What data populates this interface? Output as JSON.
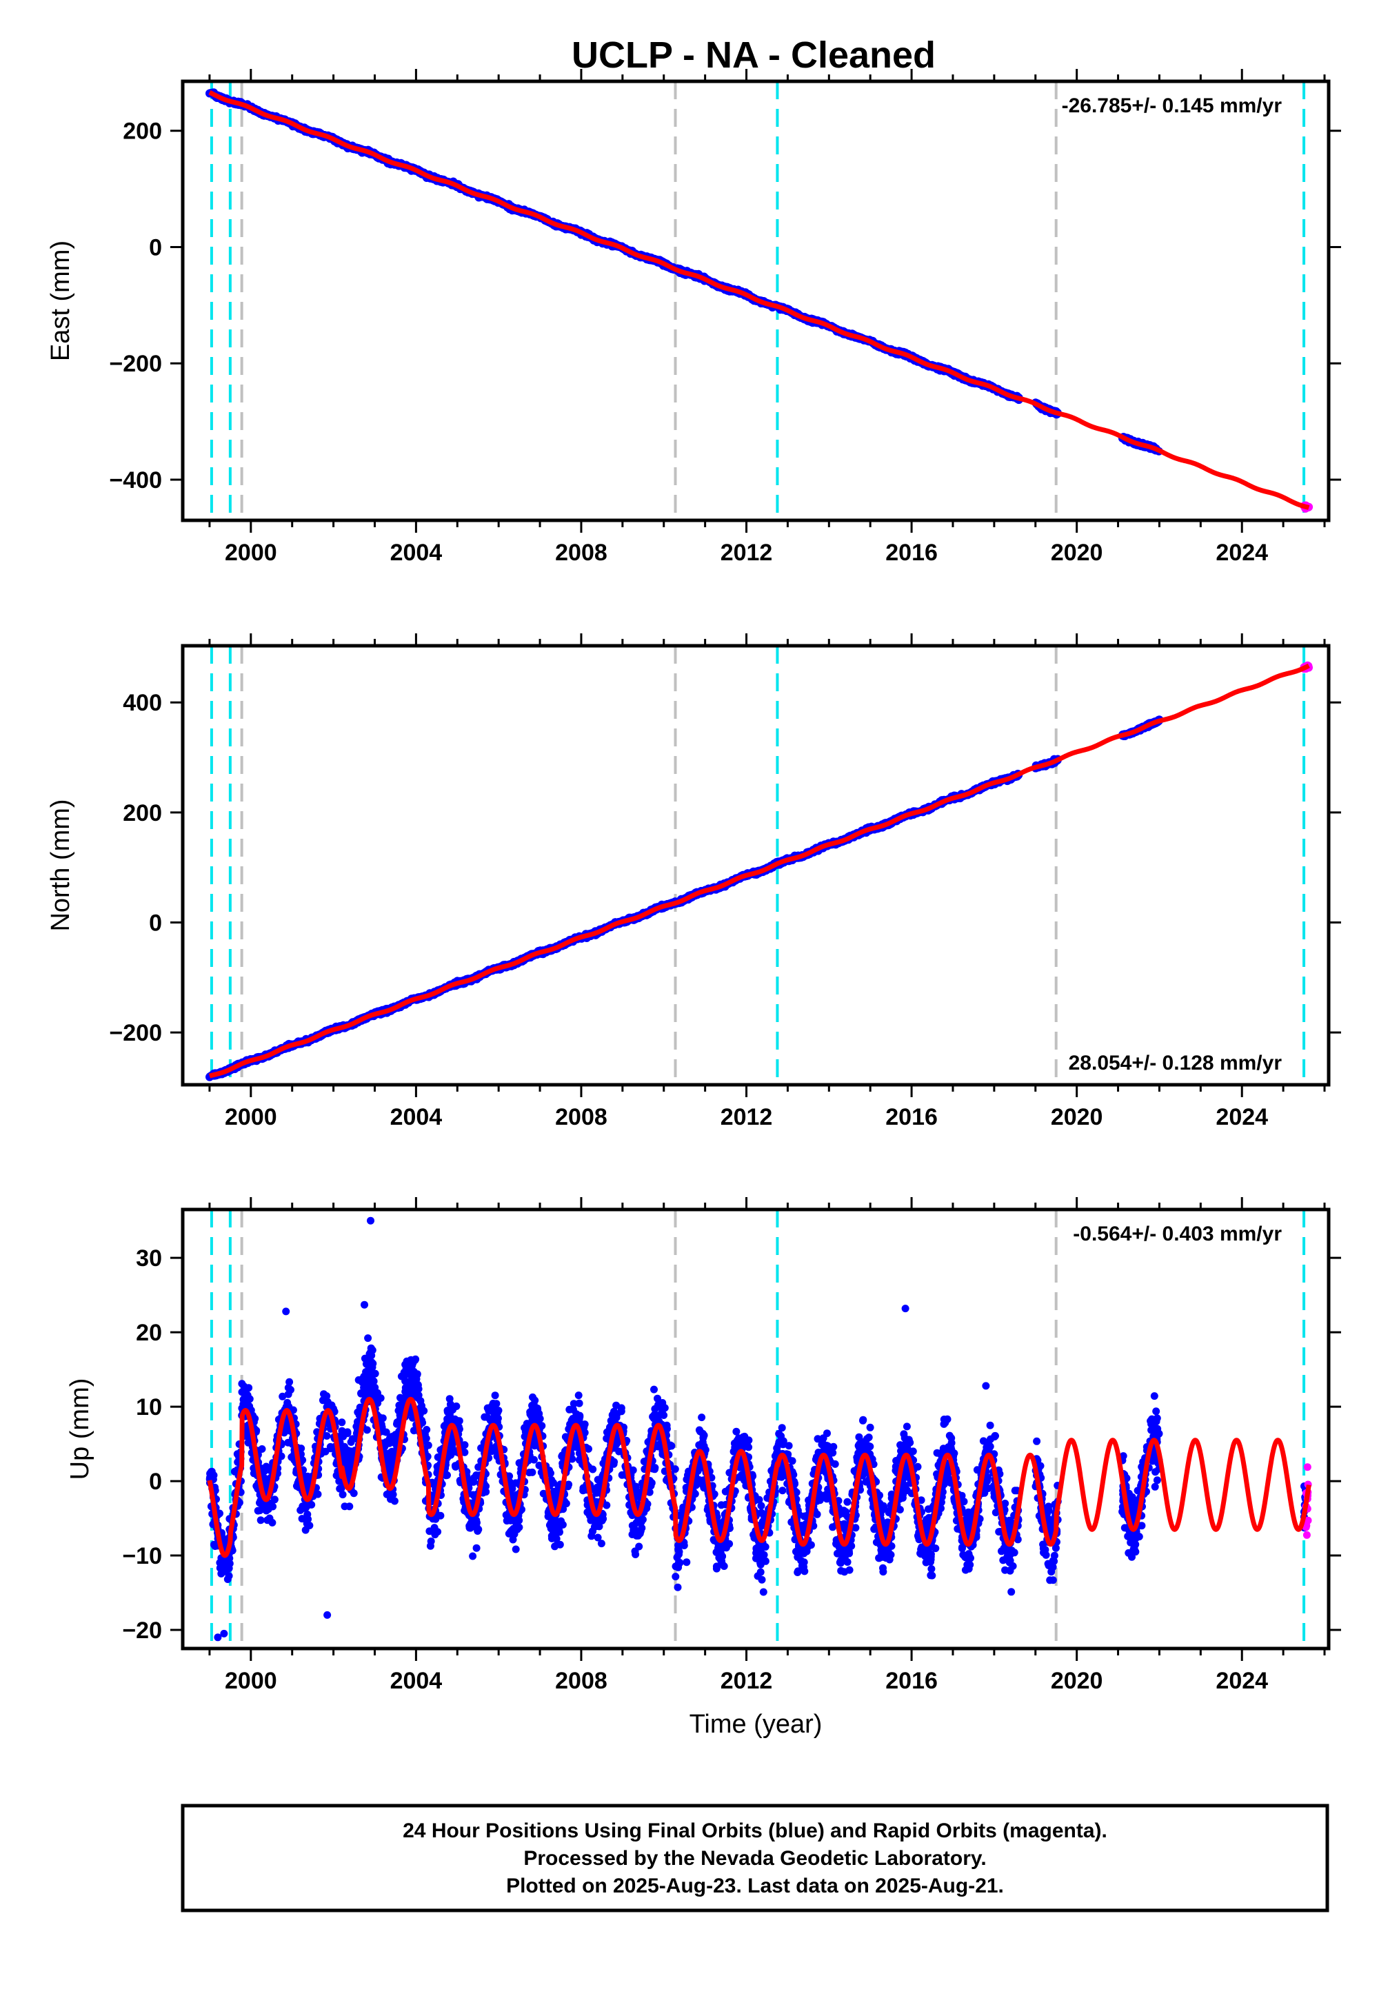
{
  "title": "UCLP  - NA - Cleaned",
  "colors": {
    "final_orbits": "#0000ff",
    "rapid_orbits": "#ff00ff",
    "model": "#ff0000",
    "equipment_change": "#00e5ee",
    "other_event": "#c0c0c0"
  },
  "footer": {
    "line1": "24 Hour Positions Using Final Orbits (blue) and Rapid Orbits (magenta).",
    "line2": "Processed by the Nevada Geodetic Laboratory.",
    "line3": "Plotted on 2025-Aug-23. Last data on 2025-Aug-21."
  },
  "chart_data": [
    {
      "type": "scatter",
      "panel": "east",
      "ylabel": "East (mm)",
      "xlabel": "",
      "xlim": [
        1998.35,
        2026.1
      ],
      "ylim": [
        -470,
        285
      ],
      "x_ticks": [
        2000,
        2004,
        2008,
        2012,
        2016,
        2020,
        2024
      ],
      "y_ticks": [
        200,
        0,
        -200,
        -400
      ],
      "rate_label": "-26.785+/- 0.145 mm/yr",
      "rate_position": "top-right",
      "trend": {
        "t0": 1999.0,
        "y0": 265,
        "rate": -26.785
      },
      "seasonal_amplitude": 1.5,
      "noise": 3,
      "series": [
        {
          "name": "Final Orbits",
          "color": "#0000ff",
          "segments": [
            [
              1999.0,
              2018.6
            ],
            [
              2019.0,
              2019.55
            ],
            [
              2021.1,
              2022.0
            ]
          ]
        },
        {
          "name": "Rapid Orbits",
          "color": "#ff00ff",
          "segments": [
            [
              2025.5,
              2025.62
            ]
          ]
        }
      ],
      "model_end": 2025.62,
      "event_lines": [
        {
          "x": 1999.05,
          "kind": "equipment_change"
        },
        {
          "x": 1999.5,
          "kind": "equipment_change"
        },
        {
          "x": 1999.78,
          "kind": "other_event"
        },
        {
          "x": 2010.28,
          "kind": "other_event"
        },
        {
          "x": 2012.75,
          "kind": "equipment_change"
        },
        {
          "x": 2019.5,
          "kind": "other_event"
        },
        {
          "x": 2025.5,
          "kind": "equipment_change"
        }
      ]
    },
    {
      "type": "scatter",
      "panel": "north",
      "ylabel": "North (mm)",
      "xlabel": "",
      "xlim": [
        1998.35,
        2026.1
      ],
      "ylim": [
        -295,
        503
      ],
      "x_ticks": [
        2000,
        2004,
        2008,
        2012,
        2016,
        2020,
        2024
      ],
      "y_ticks": [
        400,
        200,
        0,
        -200
      ],
      "rate_label": "28.054+/- 0.128 mm/yr",
      "rate_position": "bottom-right",
      "trend": {
        "t0": 1999.0,
        "y0": -280,
        "rate": 28.054
      },
      "seasonal_amplitude": 1.5,
      "noise": 3,
      "series": [
        {
          "name": "Final Orbits",
          "color": "#0000ff",
          "segments": [
            [
              1999.0,
              2018.6
            ],
            [
              2019.0,
              2019.55
            ],
            [
              2021.1,
              2022.0
            ]
          ]
        },
        {
          "name": "Rapid Orbits",
          "color": "#ff00ff",
          "segments": [
            [
              2025.5,
              2025.62
            ]
          ]
        }
      ],
      "model_end": 2025.62,
      "event_lines": [
        {
          "x": 1999.05,
          "kind": "equipment_change"
        },
        {
          "x": 1999.5,
          "kind": "equipment_change"
        },
        {
          "x": 1999.78,
          "kind": "other_event"
        },
        {
          "x": 2010.28,
          "kind": "other_event"
        },
        {
          "x": 2012.75,
          "kind": "equipment_change"
        },
        {
          "x": 2019.5,
          "kind": "other_event"
        },
        {
          "x": 2025.5,
          "kind": "equipment_change"
        }
      ]
    },
    {
      "type": "scatter",
      "panel": "up",
      "ylabel": "Up (mm)",
      "xlabel": "Time (year)",
      "xlim": [
        1998.35,
        2026.1
      ],
      "ylim": [
        -22.5,
        36.5
      ],
      "x_ticks": [
        2000,
        2004,
        2008,
        2012,
        2016,
        2020,
        2024
      ],
      "y_ticks": [
        30,
        20,
        10,
        0,
        -10,
        -20
      ],
      "rate_label": "-0.564+/- 0.403 mm/yr",
      "rate_position": "top-right",
      "seasonal_amplitude": 6,
      "noise": 4.5,
      "offsets": [
        {
          "from": 1998.0,
          "to": 1999.5,
          "value": -4
        },
        {
          "from": 1999.5,
          "to": 1999.78,
          "value": -3
        },
        {
          "from": 1999.78,
          "to": 2002.2,
          "value": 3.5
        },
        {
          "from": 2002.2,
          "to": 2004.3,
          "value": 5
        },
        {
          "from": 2004.3,
          "to": 2010.28,
          "value": 1.5
        },
        {
          "from": 2010.28,
          "to": 2012.75,
          "value": -2
        },
        {
          "from": 2012.75,
          "to": 2019.5,
          "value": -2.5
        },
        {
          "from": 2019.5,
          "to": 2026.2,
          "value": -0.5
        }
      ],
      "outliers": [
        {
          "x": 2002.9,
          "y": 35
        },
        {
          "x": 2002.75,
          "y": 23.7
        },
        {
          "x": 2000.85,
          "y": 22.8
        },
        {
          "x": 2015.85,
          "y": 23.2
        },
        {
          "x": 2001.85,
          "y": -18
        },
        {
          "x": 1999.2,
          "y": -21
        },
        {
          "x": 1999.35,
          "y": -20.5
        },
        {
          "x": 2017.8,
          "y": 12.8
        }
      ],
      "series": [
        {
          "name": "Final Orbits",
          "color": "#0000ff",
          "segments": [
            [
              1999.0,
              2018.6
            ],
            [
              2019.0,
              2019.55
            ],
            [
              2021.1,
              2022.0
            ],
            [
              2025.5,
              2025.55
            ]
          ]
        },
        {
          "name": "Rapid Orbits",
          "color": "#ff00ff",
          "segments": [
            [
              2025.55,
              2025.62
            ]
          ]
        }
      ],
      "model_end": 2025.62,
      "event_lines": [
        {
          "x": 1999.05,
          "kind": "equipment_change"
        },
        {
          "x": 1999.5,
          "kind": "equipment_change"
        },
        {
          "x": 1999.78,
          "kind": "other_event"
        },
        {
          "x": 2010.28,
          "kind": "other_event"
        },
        {
          "x": 2012.75,
          "kind": "equipment_change"
        },
        {
          "x": 2019.5,
          "kind": "other_event"
        },
        {
          "x": 2025.5,
          "kind": "equipment_change"
        }
      ]
    }
  ]
}
